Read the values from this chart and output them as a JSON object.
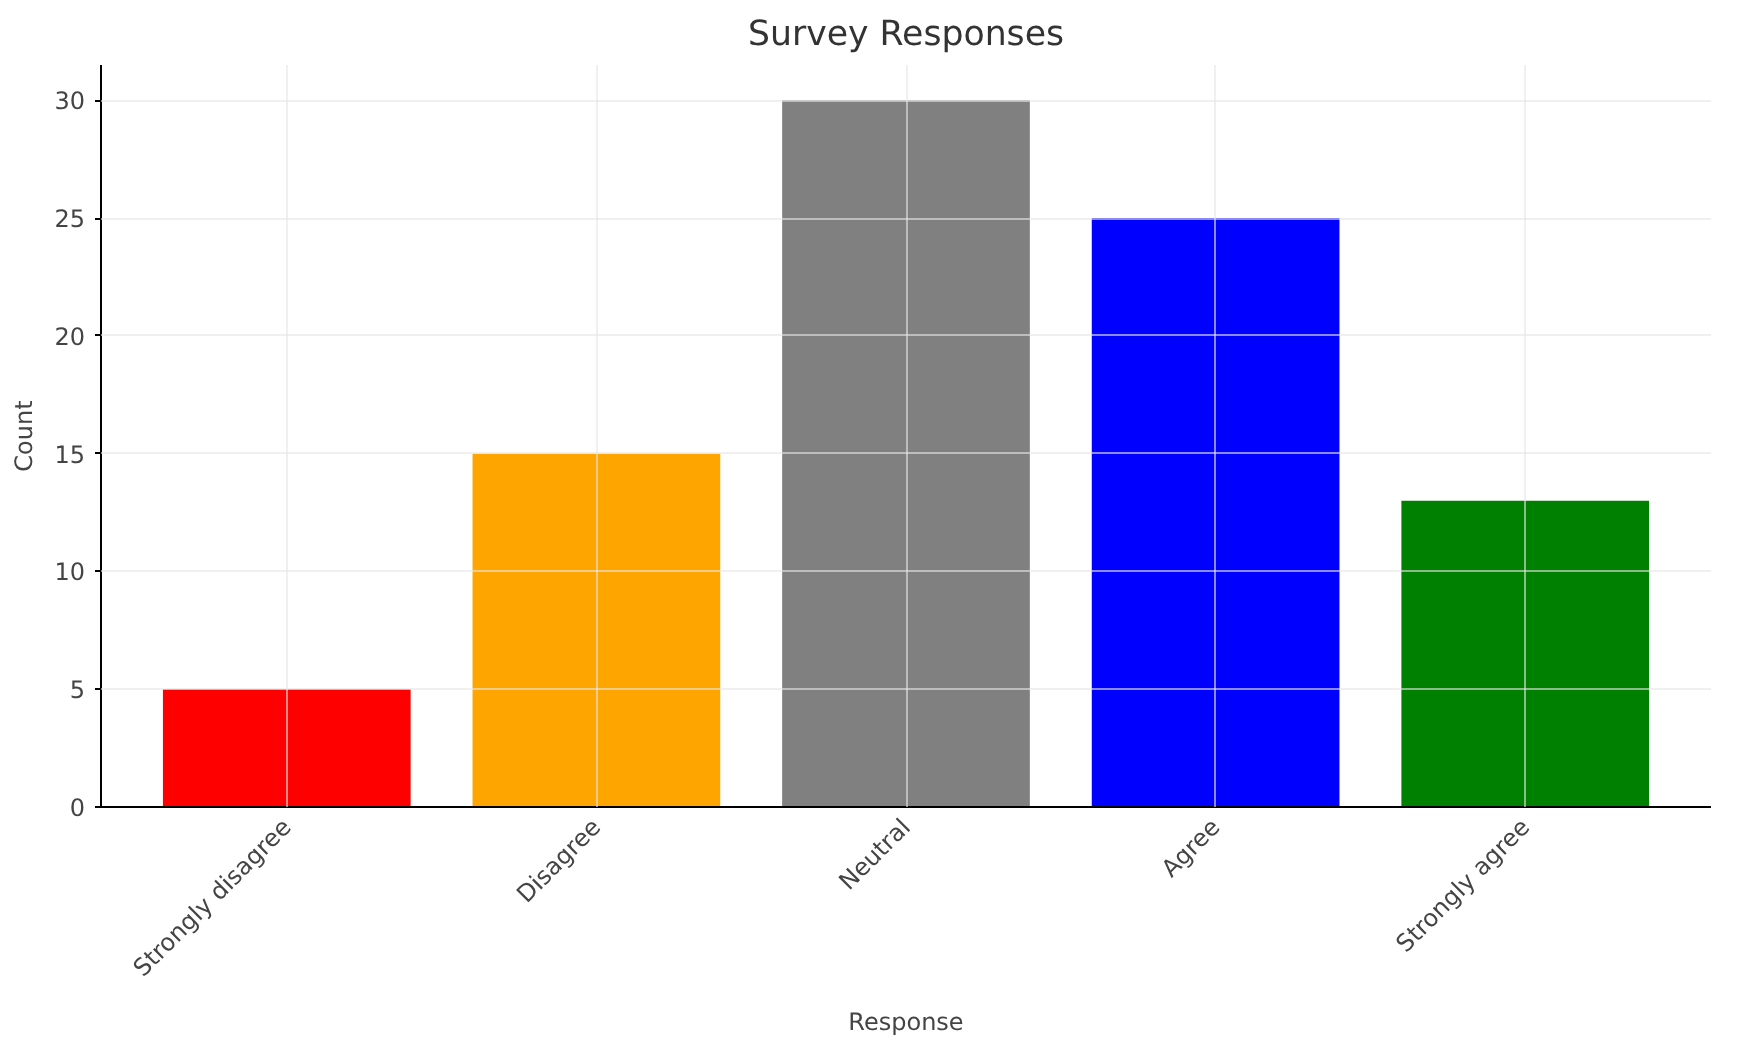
{
  "chart_data": {
    "type": "bar",
    "title": "Survey Responses",
    "xlabel": "Response",
    "ylabel": "Count",
    "categories": [
      "Strongly disagree",
      "Disagree",
      "Neutral",
      "Agree",
      "Strongly agree"
    ],
    "values": [
      5,
      15,
      30,
      25,
      13
    ],
    "colors": [
      "#ff0000",
      "#ffa500",
      "#808080",
      "#0000ff",
      "#008000"
    ],
    "ylim": [
      0,
      31.5
    ],
    "yticks": [
      0,
      5,
      10,
      15,
      20,
      25,
      30
    ],
    "grid": true
  }
}
